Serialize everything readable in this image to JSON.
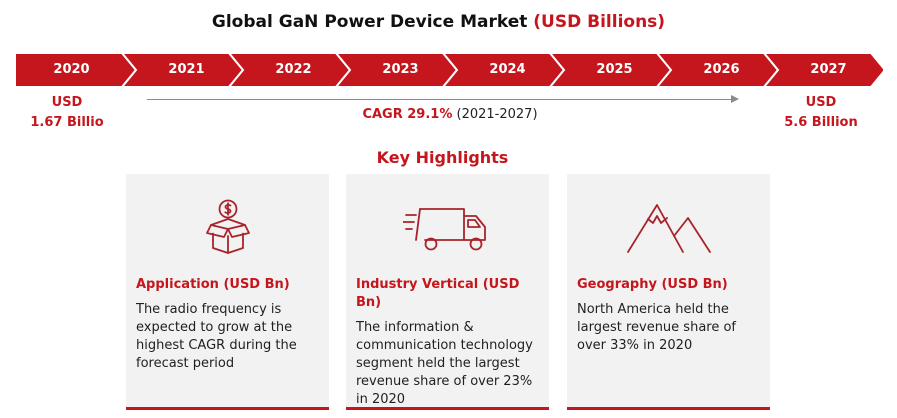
{
  "title": {
    "main": "Global GaN Power Device Market",
    "accent": "(USD Billions)"
  },
  "colors": {
    "accent": "#c4161c",
    "card_bg": "#f2f2f2",
    "arrow_line": "#8a8a8a"
  },
  "timeline": {
    "years": [
      "2020",
      "2021",
      "2022",
      "2023",
      "2024",
      "2025",
      "2026",
      "2027"
    ]
  },
  "start_value": {
    "line1": "USD",
    "line2": "1.67 Billio"
  },
  "end_value": {
    "line1": "USD",
    "line2": "5.6 Billion"
  },
  "cagr": {
    "value": "CAGR 29.1%",
    "period": "(2021-2027)"
  },
  "key_highlights": {
    "title": "Key Highlights",
    "cards": [
      {
        "icon": "money-box-icon",
        "heading": "Application (USD Bn)",
        "body": "The radio frequency is expected to grow at the highest CAGR during the forecast period"
      },
      {
        "icon": "delivery-truck-icon",
        "heading": "Industry Vertical (USD Bn)",
        "body": "The information & communication technology segment held the largest revenue share of over 23% in 2020"
      },
      {
        "icon": "mountain-icon",
        "heading": "Geography (USD Bn)",
        "body": "North America held the largest revenue share of over 33% in 2020"
      }
    ]
  }
}
